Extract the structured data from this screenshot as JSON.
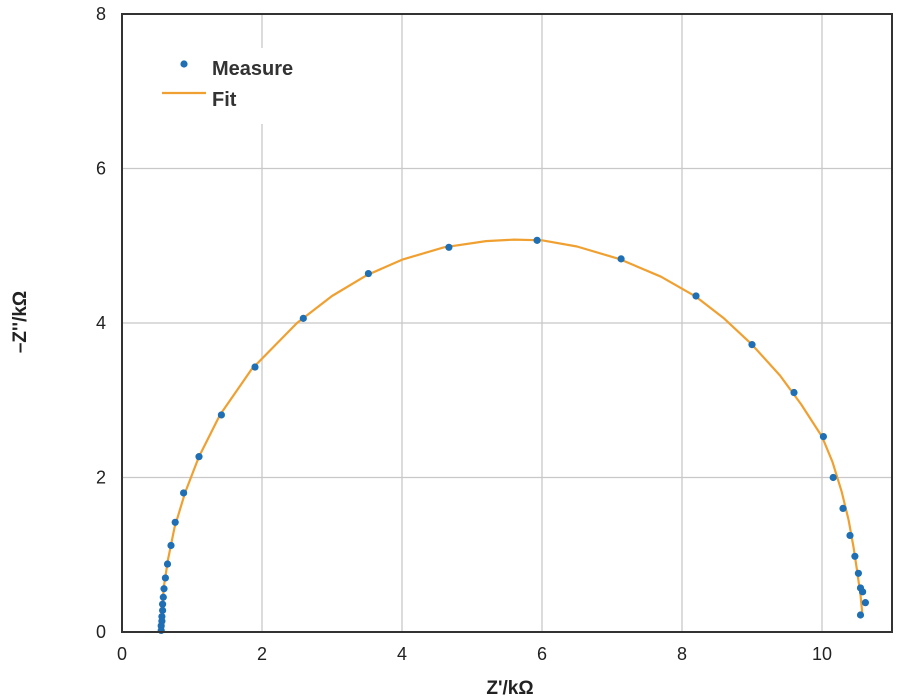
{
  "chart_data": {
    "type": "scatter",
    "xlabel": "Z'/kΩ",
    "ylabel": "–Z''/kΩ",
    "xlim": [
      0,
      11
    ],
    "ylim": [
      0,
      8
    ],
    "xticks": [
      0,
      2,
      4,
      6,
      8,
      10
    ],
    "yticks": [
      0,
      2,
      4,
      6,
      8
    ],
    "grid": true,
    "legend_position": "top-left",
    "colors": {
      "measure": "#1f6fb4",
      "fit": "#f0a030",
      "grid": "#c8c8c8",
      "axis": "#333333"
    },
    "legend": [
      {
        "label": "Measure",
        "marker": "dot"
      },
      {
        "label": "Fit",
        "marker": "line"
      }
    ],
    "series": [
      {
        "name": "Measure",
        "kind": "points",
        "x": [
          0.56,
          0.56,
          0.57,
          0.57,
          0.58,
          0.58,
          0.59,
          0.6,
          0.62,
          0.65,
          0.7,
          0.76,
          0.88,
          1.1,
          1.42,
          1.9,
          2.59,
          3.52,
          4.67,
          5.93,
          7.13,
          8.2,
          9.0,
          9.6,
          10.02,
          10.16,
          10.3,
          10.4,
          10.47,
          10.52,
          10.55,
          10.58,
          10.62,
          10.55
        ],
        "y": [
          0.02,
          0.08,
          0.14,
          0.2,
          0.28,
          0.36,
          0.45,
          0.56,
          0.7,
          0.88,
          1.12,
          1.42,
          1.8,
          2.27,
          2.81,
          3.43,
          4.06,
          4.64,
          4.98,
          5.07,
          4.83,
          4.35,
          3.72,
          3.1,
          2.53,
          2.0,
          1.6,
          1.25,
          0.98,
          0.76,
          0.57,
          0.52,
          0.38,
          0.22
        ]
      },
      {
        "name": "Fit",
        "kind": "line",
        "x": [
          0.56,
          0.57,
          0.6,
          0.66,
          0.75,
          0.9,
          1.1,
          1.4,
          1.85,
          2.5,
          3.0,
          3.5,
          4.0,
          4.6,
          5.2,
          5.6,
          6.0,
          6.5,
          7.1,
          7.7,
          8.2,
          8.6,
          9.0,
          9.4,
          9.7,
          10.0,
          10.15,
          10.28,
          10.38,
          10.45,
          10.5,
          10.55,
          10.58
        ],
        "y": [
          0.0,
          0.3,
          0.6,
          0.95,
          1.35,
          1.8,
          2.27,
          2.81,
          3.4,
          4.0,
          4.35,
          4.62,
          4.82,
          4.98,
          5.06,
          5.08,
          5.07,
          4.99,
          4.83,
          4.6,
          4.34,
          4.06,
          3.72,
          3.32,
          2.95,
          2.53,
          2.2,
          1.82,
          1.45,
          1.1,
          0.8,
          0.48,
          0.2
        ]
      }
    ]
  }
}
